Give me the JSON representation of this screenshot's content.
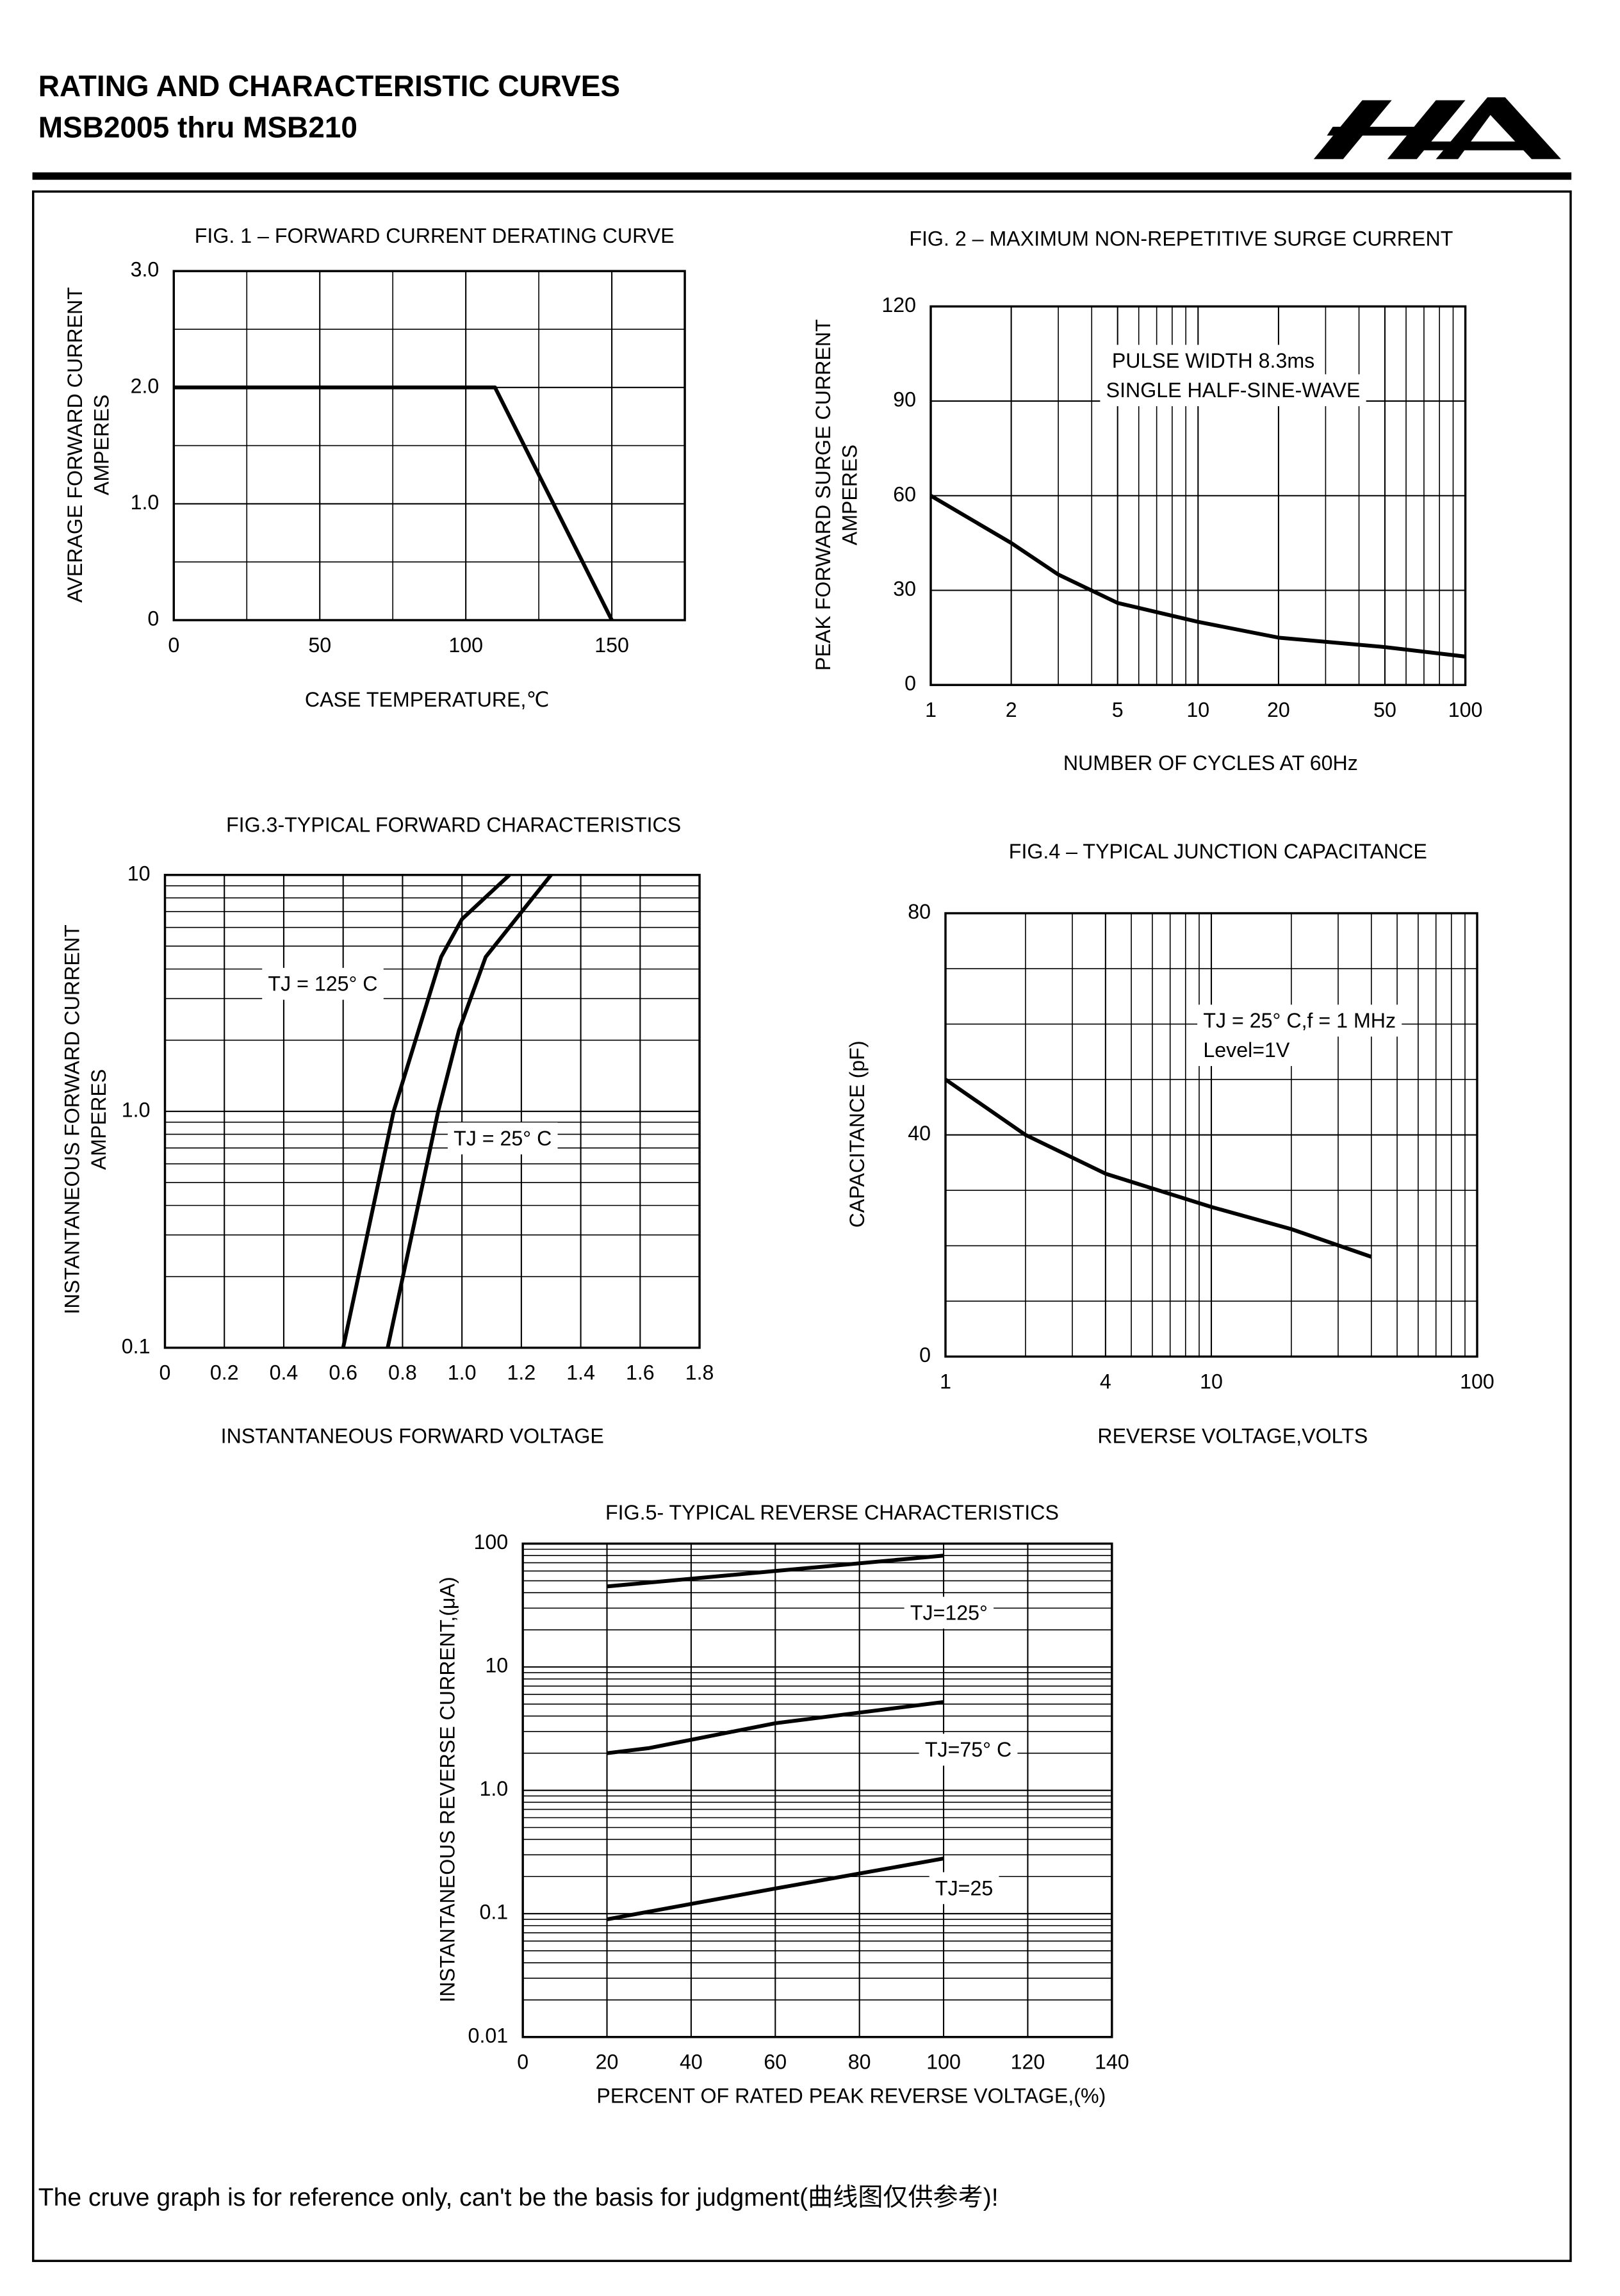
{
  "header": {
    "title": "RATING AND CHARACTERISTIC CURVES",
    "subtitle": "MSB2005 thru MSB210"
  },
  "footer": "The cruve graph is for reference only, can't be the basis for judgment(曲线图仅供参考)!",
  "chart_data": [
    {
      "type": "line",
      "title": "FIG. 1 – FORWARD CURRENT DERATING CURVE",
      "xlabel": "CASE TEMPERATURE,℃",
      "ylabel": [
        "AVERAGE FORWARD CURRENT",
        "AMPERES"
      ],
      "xlim": [
        0,
        175
      ],
      "xticks": [
        0,
        50,
        100,
        150
      ],
      "xminor": 25,
      "ylim": [
        0,
        3
      ],
      "yticks": [
        0,
        {
          "value": 1,
          "label": "1.0"
        },
        {
          "value": 2,
          "label": "2.0"
        },
        {
          "value": 3,
          "label": "3.0"
        }
      ],
      "yminor": 0.5,
      "grid": true,
      "color": "#000000",
      "series": [
        {
          "x": [
            0,
            110,
            150
          ],
          "values": [
            2,
            2,
            0
          ]
        }
      ]
    },
    {
      "type": "line",
      "title": "FIG. 2 – MAXIMUM NON-REPETITIVE SURGE CURRENT",
      "xlabel": "NUMBER OF CYCLES AT 60Hz",
      "ylabel": [
        "PEAK FORWARD SURGE CURRENT",
        "AMPERES"
      ],
      "xlim": [
        1,
        100
      ],
      "xlog": true,
      "xticks": [
        1,
        2,
        5,
        10,
        20,
        50,
        100
      ],
      "ylim": [
        0,
        120
      ],
      "yticks": [
        0,
        30,
        60,
        90,
        120
      ],
      "grid": true,
      "color": "#000000",
      "annotations": [
        "PULSE WIDTH 8.3ms",
        "SINGLE HALF-SINE-WAVE"
      ],
      "series": [
        {
          "x": [
            1,
            2,
            3,
            5,
            10,
            20,
            50,
            100
          ],
          "values": [
            60,
            45,
            35,
            26,
            20,
            15,
            12,
            9
          ]
        }
      ]
    },
    {
      "type": "line",
      "title": "FIG.3-TYPICAL FORWARD CHARACTERISTICS",
      "xlabel": "INSTANTANEOUS FORWARD VOLTAGE",
      "ylabel": [
        "INSTANTANEOUS FORWARD CURRENT",
        "AMPERES"
      ],
      "xlim": [
        0,
        1.8
      ],
      "xticks": [
        0,
        0.2,
        0.4,
        0.6,
        0.8,
        {
          "value": 1,
          "label": "1.0"
        },
        1.2,
        1.4,
        1.6,
        1.8
      ],
      "ylim": [
        0.1,
        10
      ],
      "ylog": true,
      "yticks": [
        0.1,
        {
          "value": 1,
          "label": "1.0"
        },
        10
      ],
      "grid": true,
      "color": "#000000",
      "series": [
        {
          "name": "TJ = 125° C",
          "x": [
            0.6,
            0.77,
            0.93,
            1.0,
            1.16
          ],
          "values": [
            0.1,
            1,
            4.5,
            6.5,
            10
          ]
        },
        {
          "name": "TJ = 25° C",
          "x": [
            0.75,
            0.92,
            0.99,
            1.08,
            1.3
          ],
          "values": [
            0.1,
            1,
            2.2,
            4.5,
            10
          ]
        }
      ]
    },
    {
      "type": "line",
      "title": "FIG.4 – TYPICAL JUNCTION CAPACITANCE",
      "xlabel": "REVERSE VOLTAGE,VOLTS",
      "ylabel": [
        "CAPACITANCE (pF)"
      ],
      "xlim": [
        1,
        100
      ],
      "xlog": true,
      "xticks": [
        1,
        4,
        10,
        100
      ],
      "ylim": [
        0,
        80
      ],
      "yticks": [
        0,
        40,
        80
      ],
      "yminor": 10,
      "grid": true,
      "color": "#000000",
      "annotations": [
        "TJ = 25° C,f = 1 MHz",
        "Level=1V"
      ],
      "series": [
        {
          "x": [
            1,
            2,
            4,
            10,
            20,
            40
          ],
          "values": [
            50,
            40,
            33,
            27,
            23,
            18
          ]
        }
      ]
    },
    {
      "type": "line",
      "title": "FIG.5- TYPICAL REVERSE CHARACTERISTICS",
      "xlabel": "PERCENT OF RATED PEAK REVERSE VOLTAGE,(%)",
      "ylabel": [
        "INSTANTANEOUS REVERSE CURRENT,(μA)"
      ],
      "xlim": [
        0,
        140
      ],
      "xticks": [
        0,
        20,
        40,
        60,
        80,
        100,
        120,
        140
      ],
      "ylim": [
        0.01,
        100
      ],
      "ylog": true,
      "yticks": [
        0.01,
        0.1,
        {
          "value": 1,
          "label": "1.0"
        },
        10,
        100
      ],
      "grid": true,
      "color": "#000000",
      "series": [
        {
          "name": "TJ=125°",
          "x": [
            20,
            60,
            100
          ],
          "values": [
            45,
            60,
            80
          ]
        },
        {
          "name": "TJ=75° C",
          "x": [
            20,
            30,
            60,
            100
          ],
          "values": [
            2,
            2.2,
            3.5,
            5.2
          ]
        },
        {
          "name": "TJ=25",
          "x": [
            20,
            60,
            100
          ],
          "values": [
            0.09,
            0.16,
            0.28
          ]
        }
      ]
    }
  ]
}
